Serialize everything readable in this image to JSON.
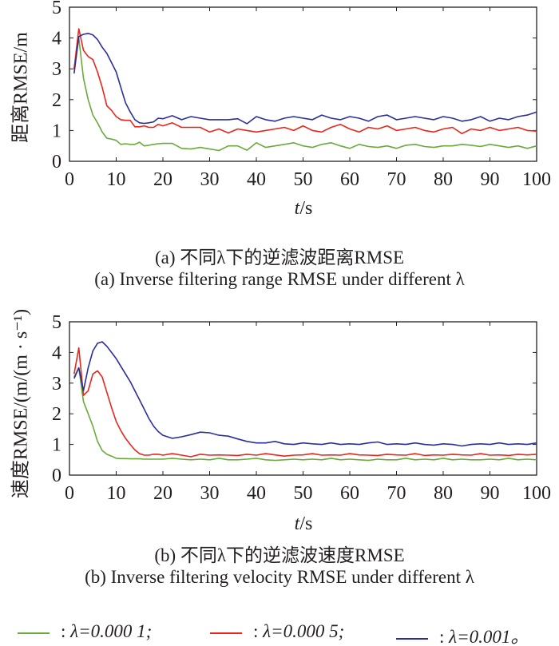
{
  "chart_data": [
    {
      "type": "line",
      "title": "(a) 不同λ下的逆滤波距离RMSE",
      "title_en": "(a) Inverse filtering range RMSE under different λ",
      "xlabel_var": "t",
      "xlabel_unit": "/s",
      "ylabel": "距离RMSE/m",
      "xlim": [
        0,
        100
      ],
      "ylim": [
        0,
        5
      ],
      "xticks": [
        0,
        10,
        20,
        30,
        40,
        50,
        60,
        70,
        80,
        90,
        100
      ],
      "yticks": [
        0,
        1,
        2,
        3,
        4,
        5
      ],
      "grid": false,
      "x": [
        1,
        2,
        3,
        4,
        5,
        6,
        7,
        8,
        9,
        10,
        11,
        12,
        13,
        14,
        15,
        16,
        17,
        18,
        19,
        20,
        22,
        24,
        26,
        28,
        30,
        32,
        34,
        36,
        38,
        40,
        42,
        44,
        46,
        48,
        50,
        52,
        54,
        56,
        58,
        60,
        62,
        64,
        66,
        68,
        70,
        72,
        74,
        76,
        78,
        80,
        82,
        84,
        86,
        88,
        90,
        92,
        94,
        96,
        98,
        100
      ],
      "series": [
        {
          "name": "λ=0.000 1",
          "color": "#6aaa3a",
          "values": [
            3.0,
            4.0,
            2.7,
            2.0,
            1.5,
            1.25,
            0.95,
            0.75,
            0.72,
            0.68,
            0.55,
            0.57,
            0.55,
            0.55,
            0.62,
            0.5,
            0.52,
            0.55,
            0.57,
            0.58,
            0.58,
            0.42,
            0.4,
            0.45,
            0.4,
            0.35,
            0.5,
            0.5,
            0.36,
            0.6,
            0.45,
            0.5,
            0.55,
            0.6,
            0.5,
            0.45,
            0.55,
            0.6,
            0.5,
            0.42,
            0.55,
            0.48,
            0.45,
            0.5,
            0.42,
            0.52,
            0.55,
            0.48,
            0.45,
            0.5,
            0.5,
            0.55,
            0.52,
            0.48,
            0.55,
            0.5,
            0.45,
            0.5,
            0.42,
            0.5
          ]
        },
        {
          "name": "λ=0.000 5",
          "color": "#e8261c",
          "values": [
            3.0,
            4.3,
            3.6,
            3.4,
            3.3,
            2.9,
            2.4,
            1.8,
            1.65,
            1.45,
            1.35,
            1.33,
            1.33,
            1.12,
            1.12,
            1.15,
            1.1,
            1.1,
            1.2,
            1.15,
            1.25,
            1.1,
            1.1,
            1.1,
            0.95,
            1.05,
            0.92,
            1.05,
            1.0,
            0.95,
            1.0,
            1.05,
            1.1,
            1.0,
            1.15,
            1.0,
            0.95,
            1.1,
            1.2,
            1.05,
            0.95,
            1.1,
            1.05,
            1.15,
            1.0,
            1.05,
            1.1,
            1.0,
            0.95,
            1.05,
            1.1,
            0.9,
            1.05,
            1.0,
            1.1,
            1.0,
            1.05,
            1.1,
            1.0,
            0.98
          ]
        },
        {
          "name": "λ=0.001",
          "color": "#2b2f9a",
          "values": [
            2.85,
            4.05,
            4.12,
            4.15,
            4.1,
            3.95,
            3.7,
            3.5,
            3.2,
            2.9,
            2.4,
            1.9,
            1.6,
            1.35,
            1.25,
            1.23,
            1.25,
            1.28,
            1.4,
            1.38,
            1.48,
            1.35,
            1.45,
            1.4,
            1.35,
            1.35,
            1.35,
            1.38,
            1.22,
            1.45,
            1.35,
            1.3,
            1.4,
            1.45,
            1.4,
            1.35,
            1.5,
            1.4,
            1.35,
            1.45,
            1.4,
            1.3,
            1.45,
            1.5,
            1.35,
            1.4,
            1.45,
            1.4,
            1.35,
            1.45,
            1.4,
            1.3,
            1.35,
            1.45,
            1.3,
            1.4,
            1.35,
            1.45,
            1.5,
            1.6
          ]
        }
      ]
    },
    {
      "type": "line",
      "title": "(b) 不同λ下的逆滤波速度RMSE",
      "title_en": "(b) Inverse filtering velocity RMSE under different λ",
      "xlabel_var": "t",
      "xlabel_unit": "/s",
      "ylabel": "速度RMSE/(m/(m · s⁻¹)",
      "xlim": [
        0,
        100
      ],
      "ylim": [
        0,
        5
      ],
      "xticks": [
        0,
        10,
        20,
        30,
        40,
        50,
        60,
        70,
        80,
        90,
        100
      ],
      "yticks": [
        0,
        1,
        2,
        3,
        4,
        5
      ],
      "grid": false,
      "x": [
        1,
        2,
        3,
        4,
        5,
        6,
        7,
        8,
        9,
        10,
        11,
        12,
        13,
        14,
        15,
        16,
        17,
        18,
        19,
        20,
        22,
        24,
        26,
        28,
        30,
        32,
        34,
        36,
        38,
        40,
        42,
        44,
        46,
        48,
        50,
        52,
        54,
        56,
        58,
        60,
        62,
        64,
        66,
        68,
        70,
        72,
        74,
        76,
        78,
        80,
        82,
        84,
        86,
        88,
        90,
        92,
        94,
        96,
        98,
        100
      ],
      "series": [
        {
          "name": "λ=0.000 1",
          "color": "#6aaa3a",
          "values": [
            3.2,
            3.5,
            2.4,
            2.0,
            1.6,
            1.1,
            0.8,
            0.68,
            0.62,
            0.55,
            0.54,
            0.54,
            0.53,
            0.53,
            0.53,
            0.52,
            0.52,
            0.52,
            0.52,
            0.52,
            0.55,
            0.52,
            0.5,
            0.52,
            0.5,
            0.55,
            0.5,
            0.5,
            0.52,
            0.55,
            0.5,
            0.48,
            0.5,
            0.52,
            0.5,
            0.52,
            0.5,
            0.55,
            0.5,
            0.52,
            0.5,
            0.48,
            0.52,
            0.5,
            0.5,
            0.55,
            0.5,
            0.52,
            0.5,
            0.55,
            0.5,
            0.52,
            0.5,
            0.5,
            0.52,
            0.5,
            0.55,
            0.5,
            0.52,
            0.5
          ]
        },
        {
          "name": "λ=0.000 5",
          "color": "#e8261c",
          "values": [
            3.3,
            4.15,
            2.6,
            2.75,
            3.3,
            3.4,
            3.2,
            2.7,
            2.2,
            1.75,
            1.45,
            1.2,
            1.0,
            0.82,
            0.7,
            0.65,
            0.65,
            0.68,
            0.68,
            0.65,
            0.7,
            0.65,
            0.6,
            0.68,
            0.65,
            0.66,
            0.65,
            0.64,
            0.68,
            0.65,
            0.7,
            0.66,
            0.62,
            0.65,
            0.66,
            0.7,
            0.65,
            0.66,
            0.65,
            0.7,
            0.66,
            0.65,
            0.64,
            0.68,
            0.66,
            0.65,
            0.7,
            0.64,
            0.66,
            0.65,
            0.68,
            0.66,
            0.65,
            0.7,
            0.65,
            0.66,
            0.64,
            0.68,
            0.66,
            0.68
          ]
        },
        {
          "name": "λ=0.001",
          "color": "#2b2f9a",
          "values": [
            3.15,
            3.5,
            2.75,
            3.5,
            4.05,
            4.3,
            4.35,
            4.2,
            4.0,
            3.8,
            3.55,
            3.3,
            3.05,
            2.75,
            2.45,
            2.15,
            1.85,
            1.6,
            1.42,
            1.3,
            1.2,
            1.25,
            1.32,
            1.4,
            1.38,
            1.3,
            1.27,
            1.18,
            1.1,
            1.05,
            1.05,
            1.1,
            1.02,
            1.0,
            1.05,
            1.02,
            1.0,
            1.05,
            1.0,
            1.02,
            1.0,
            1.05,
            1.08,
            1.0,
            1.02,
            1.0,
            1.05,
            1.0,
            0.98,
            1.02,
            1.0,
            0.95,
            1.0,
            1.02,
            1.0,
            1.05,
            1.0,
            1.02,
            1.0,
            1.05
          ]
        }
      ]
    }
  ],
  "legend": [
    {
      "sep": ": ",
      "label": "λ=0.000 1;",
      "color": "#6aaa3a"
    },
    {
      "sep": ": ",
      "label": "λ=0.000 5;",
      "color": "#e8261c"
    },
    {
      "sep": ": ",
      "label": "λ=0.001。",
      "color": "#2b2f9a"
    }
  ]
}
